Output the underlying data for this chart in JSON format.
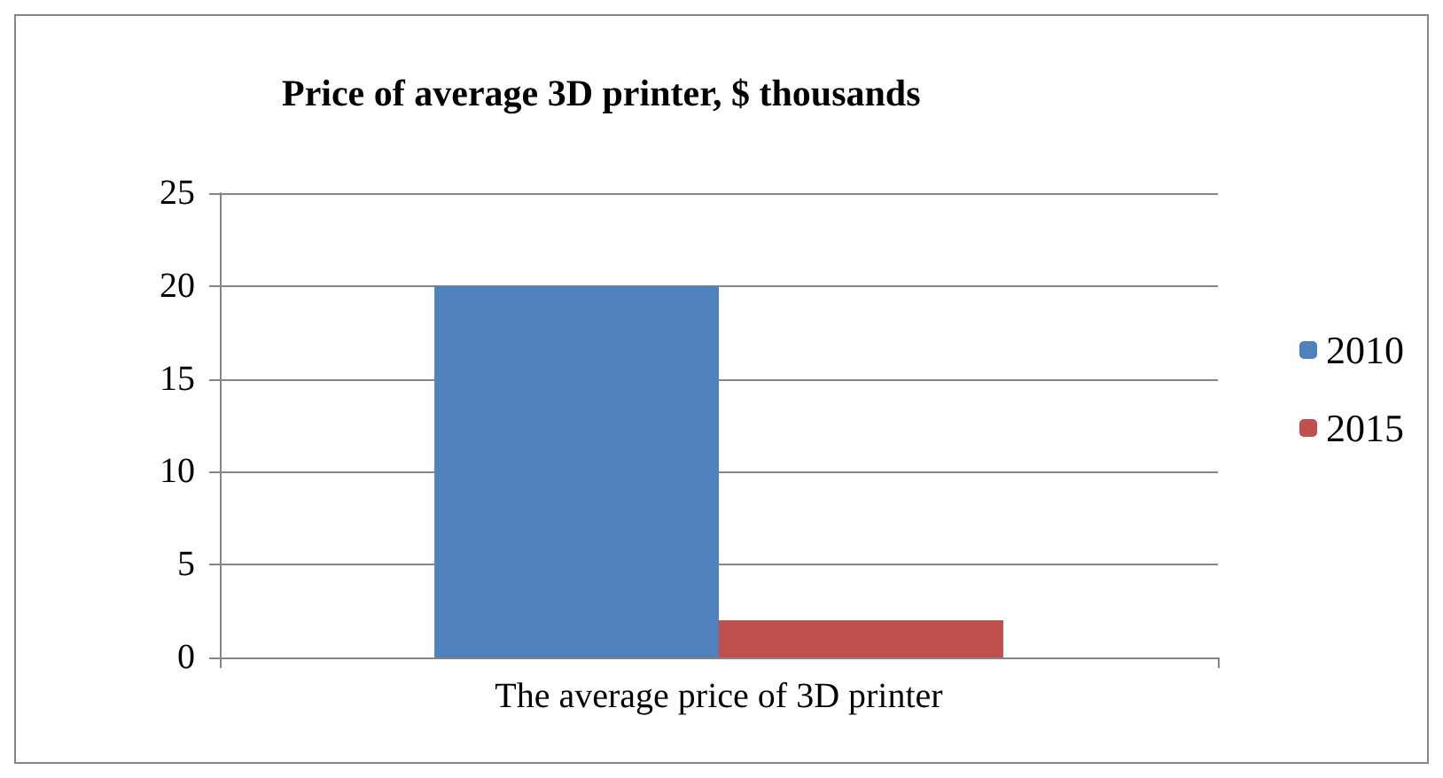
{
  "chart_data": {
    "type": "bar",
    "title": "Price of average 3D printer, $ thousands",
    "categories": [
      "The average price of 3D printer"
    ],
    "series": [
      {
        "name": "2010",
        "color": "#4f81bd",
        "values": [
          20
        ]
      },
      {
        "name": "2015",
        "color": "#c0504d",
        "values": [
          2
        ]
      }
    ],
    "ylim": [
      0,
      25
    ],
    "yticks": [
      0,
      5,
      10,
      15,
      20,
      25
    ],
    "grid": "y",
    "legend": "right"
  }
}
